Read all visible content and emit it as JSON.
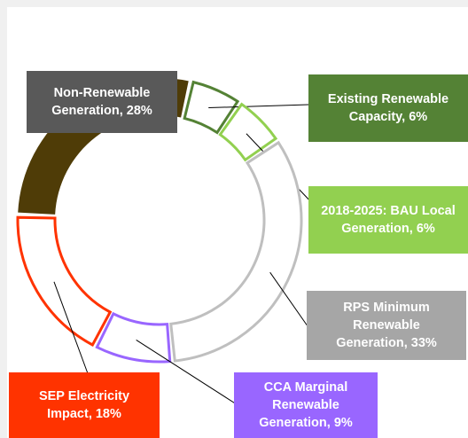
{
  "chart_data": {
    "type": "donut",
    "values": [
      28,
      6,
      6,
      33,
      9,
      18
    ],
    "value_labels": [
      "Non-Renewable Generation, 28%",
      "Existing Renewable Capacity, 6%",
      "2018-2025: BAU Local Generation, 6%",
      "RPS Minimum Renewable Generation, 33%",
      "CCA Marginal Renewable Generation, 9%",
      "SEP Electricity Impact, 18%"
    ],
    "colors": [
      "#4f3c07",
      "#548235",
      "#92d050",
      "#bfbfbf",
      "#9966ff",
      "#ff3300"
    ],
    "label_colors": [
      "#595959",
      "#548235",
      "#92d050",
      "#a6a6a6",
      "#9966ff",
      "#ff3300"
    ]
  }
}
